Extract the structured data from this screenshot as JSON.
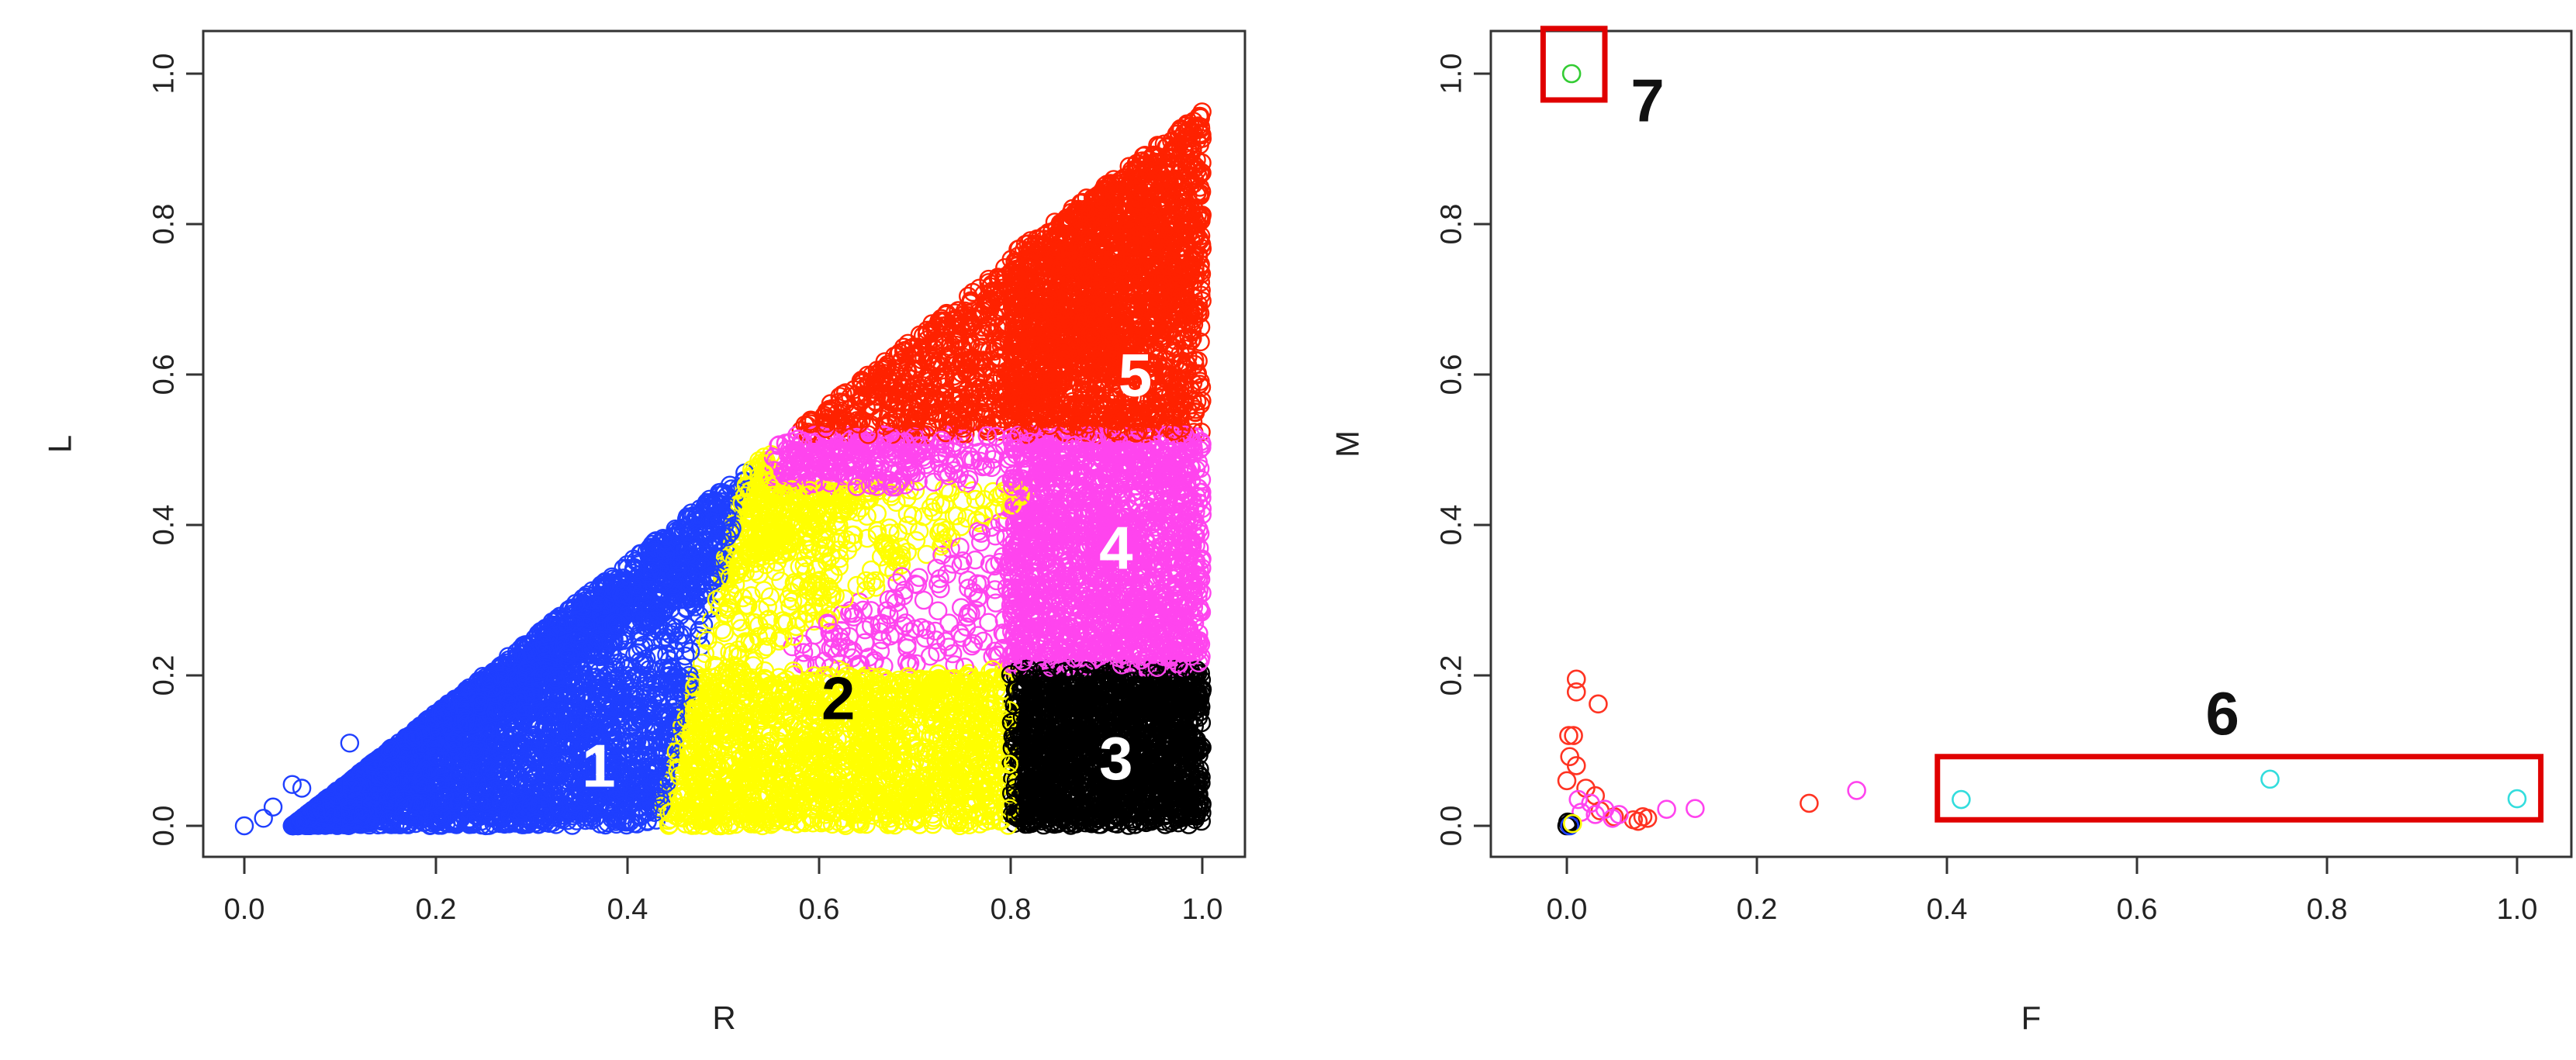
{
  "chart_data": [
    {
      "type": "scatter",
      "panel": "left",
      "xlabel": "R",
      "ylabel": "L",
      "xlim": [
        0,
        1
      ],
      "ylim": [
        0,
        1
      ],
      "xticks": [
        "0.0",
        "0.2",
        "0.4",
        "0.6",
        "0.8",
        "1.0"
      ],
      "yticks": [
        "0.0",
        "0.2",
        "0.4",
        "0.6",
        "0.8",
        "1.0"
      ],
      "marker": "open-circle",
      "grid": false,
      "clusters": [
        {
          "label": "1",
          "color": "#1f3fff",
          "label_xy": [
            0.37,
            0.08
          ],
          "label_color": "#ffffff"
        },
        {
          "label": "2",
          "color": "#ffff00",
          "label_xy": [
            0.62,
            0.17
          ],
          "label_color": "#000000"
        },
        {
          "label": "3",
          "color": "#000000",
          "label_xy": [
            0.91,
            0.09
          ],
          "label_color": "#ffffff"
        },
        {
          "label": "4",
          "color": "#ff44ee",
          "label_xy": [
            0.91,
            0.37
          ],
          "label_color": "#ffffff"
        },
        {
          "label": "5",
          "color": "#ff2200",
          "label_xy": [
            0.93,
            0.6
          ],
          "label_color": "#ffffff"
        }
      ]
    },
    {
      "type": "scatter",
      "panel": "right",
      "xlabel": "F",
      "ylabel": "M",
      "xlim": [
        0,
        1
      ],
      "ylim": [
        0,
        1
      ],
      "xticks": [
        "0.0",
        "0.2",
        "0.4",
        "0.6",
        "0.8",
        "1.0"
      ],
      "yticks": [
        "0.0",
        "0.2",
        "0.4",
        "0.6",
        "0.8",
        "1.0"
      ],
      "marker": "open-circle",
      "grid": false,
      "points": [
        {
          "x": 0.005,
          "y": 1.0,
          "color": "#33cc33"
        },
        {
          "x": 0.415,
          "y": 0.035,
          "color": "#33dddd"
        },
        {
          "x": 0.74,
          "y": 0.062,
          "color": "#33dddd"
        },
        {
          "x": 1.0,
          "y": 0.036,
          "color": "#33dddd"
        },
        {
          "x": 0.01,
          "y": 0.195,
          "color": "#ff3322"
        },
        {
          "x": 0.01,
          "y": 0.178,
          "color": "#ff3322"
        },
        {
          "x": 0.033,
          "y": 0.162,
          "color": "#ff3322"
        },
        {
          "x": 0.002,
          "y": 0.12,
          "color": "#ff3322"
        },
        {
          "x": 0.007,
          "y": 0.12,
          "color": "#ff3322"
        },
        {
          "x": 0.003,
          "y": 0.092,
          "color": "#ff3322"
        },
        {
          "x": 0.01,
          "y": 0.08,
          "color": "#ff3322"
        },
        {
          "x": 0.0,
          "y": 0.06,
          "color": "#ff3322"
        },
        {
          "x": 0.02,
          "y": 0.05,
          "color": "#ff3322"
        },
        {
          "x": 0.03,
          "y": 0.04,
          "color": "#ff3322"
        },
        {
          "x": 0.035,
          "y": 0.02,
          "color": "#ff3322"
        },
        {
          "x": 0.05,
          "y": 0.012,
          "color": "#ff3322"
        },
        {
          "x": 0.07,
          "y": 0.008,
          "color": "#ff3322"
        },
        {
          "x": 0.075,
          "y": 0.006,
          "color": "#ff3322"
        },
        {
          "x": 0.08,
          "y": 0.012,
          "color": "#ff3322"
        },
        {
          "x": 0.085,
          "y": 0.01,
          "color": "#ff3322"
        },
        {
          "x": 0.255,
          "y": 0.03,
          "color": "#ff3322"
        },
        {
          "x": 0.012,
          "y": 0.035,
          "color": "#ff44ee"
        },
        {
          "x": 0.025,
          "y": 0.03,
          "color": "#ff44ee"
        },
        {
          "x": 0.015,
          "y": 0.018,
          "color": "#ff44ee"
        },
        {
          "x": 0.03,
          "y": 0.015,
          "color": "#ff44ee"
        },
        {
          "x": 0.04,
          "y": 0.022,
          "color": "#ff44ee"
        },
        {
          "x": 0.048,
          "y": 0.01,
          "color": "#ff44ee"
        },
        {
          "x": 0.055,
          "y": 0.015,
          "color": "#ff44ee"
        },
        {
          "x": 0.105,
          "y": 0.022,
          "color": "#ff44ee"
        },
        {
          "x": 0.135,
          "y": 0.023,
          "color": "#ff44ee"
        },
        {
          "x": 0.305,
          "y": 0.047,
          "color": "#ff44ee"
        },
        {
          "x": 0.0,
          "y": 0.0,
          "color": "#000000"
        },
        {
          "x": 0.002,
          "y": 0.002,
          "color": "#000000"
        },
        {
          "x": 0.004,
          "y": 0.004,
          "color": "#000000"
        },
        {
          "x": 0.001,
          "y": 0.005,
          "color": "#000000"
        },
        {
          "x": 0.003,
          "y": 0.0,
          "color": "#1f3fff"
        },
        {
          "x": 0.006,
          "y": 0.003,
          "color": "#ffff00"
        }
      ],
      "annotations": [
        {
          "label": "7",
          "box_x": [
            -0.025,
            0.04
          ],
          "box_y": [
            0.965,
            1.06
          ],
          "text_xy": [
            0.085,
            0.965
          ]
        },
        {
          "label": "6",
          "box_x": [
            0.39,
            1.025
          ],
          "box_y": [
            0.008,
            0.092
          ],
          "text_xy": [
            0.69,
            0.15
          ]
        }
      ]
    }
  ]
}
